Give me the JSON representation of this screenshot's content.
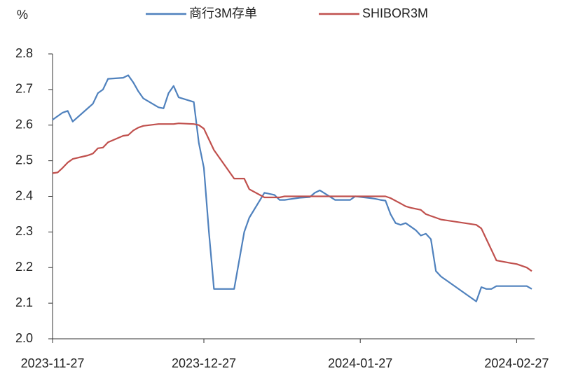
{
  "chart_data": {
    "type": "line",
    "ylabel": "%",
    "xlim": [
      "2023-11-27",
      "2024-03-01"
    ],
    "xticks": [
      "2023-11-27",
      "2023-12-27",
      "2024-01-27",
      "2024-02-27"
    ],
    "ylim": [
      2.0,
      2.8
    ],
    "yticks": [
      {
        "value": 2.0,
        "label": "2.0"
      },
      2.1,
      2.2,
      2.3,
      2.4,
      2.5,
      2.6,
      2.7,
      2.8
    ],
    "legend": "top",
    "series": [
      {
        "name": "商行3M存单",
        "color": "#4f81bd",
        "x": [
          "2023-11-27",
          "2023-11-28",
          "2023-11-29",
          "2023-11-30",
          "2023-12-01",
          "2023-12-05",
          "2023-12-06",
          "2023-12-07",
          "2023-12-08",
          "2023-12-11",
          "2023-12-12",
          "2023-12-13",
          "2023-12-14",
          "2023-12-15",
          "2023-12-18",
          "2023-12-19",
          "2023-12-20",
          "2023-12-21",
          "2023-12-22",
          "2023-12-25",
          "2023-12-26",
          "2023-12-27",
          "2023-12-28",
          "2023-12-29",
          "2024-01-02",
          "2024-01-04",
          "2024-01-05",
          "2024-01-08",
          "2024-01-09",
          "2024-01-10",
          "2024-01-11",
          "2024-01-12",
          "2024-01-15",
          "2024-01-16",
          "2024-01-17",
          "2024-01-18",
          "2024-01-19",
          "2024-01-22",
          "2024-01-23",
          "2024-01-24",
          "2024-01-25",
          "2024-01-26",
          "2024-01-29",
          "2024-01-30",
          "2024-01-31",
          "2024-02-01",
          "2024-02-02",
          "2024-02-03",
          "2024-02-04",
          "2024-02-05",
          "2024-02-06",
          "2024-02-07",
          "2024-02-08",
          "2024-02-09",
          "2024-02-10",
          "2024-02-11",
          "2024-02-12",
          "2024-02-19",
          "2024-02-20",
          "2024-02-21",
          "2024-02-22",
          "2024-02-23",
          "2024-02-26",
          "2024-02-27",
          "2024-02-28",
          "2024-02-29",
          "2024-03-01"
        ],
        "values": [
          2.615,
          2.625,
          2.635,
          2.64,
          2.61,
          2.66,
          2.69,
          2.7,
          2.73,
          2.733,
          2.74,
          2.72,
          2.695,
          2.675,
          2.65,
          2.647,
          2.69,
          2.71,
          2.678,
          2.665,
          2.55,
          2.48,
          2.3,
          2.14,
          2.14,
          2.3,
          2.34,
          2.41,
          2.407,
          2.404,
          2.39,
          2.39,
          2.396,
          2.397,
          2.398,
          2.41,
          2.417,
          2.39,
          2.39,
          2.39,
          2.39,
          2.4,
          2.395,
          2.393,
          2.39,
          2.388,
          2.35,
          2.325,
          2.32,
          2.325,
          2.315,
          2.305,
          2.29,
          2.295,
          2.28,
          2.19,
          2.175,
          2.105,
          2.145,
          2.14,
          2.14,
          2.148,
          2.148,
          2.148,
          2.148,
          2.148,
          2.14
        ]
      },
      {
        "name": "SHIBOR3M",
        "color": "#c0504d",
        "x": [
          "2023-11-27",
          "2023-11-28",
          "2023-11-29",
          "2023-11-30",
          "2023-12-01",
          "2023-12-04",
          "2023-12-05",
          "2023-12-06",
          "2023-12-07",
          "2023-12-08",
          "2023-12-11",
          "2023-12-12",
          "2023-12-13",
          "2023-12-14",
          "2023-12-15",
          "2023-12-18",
          "2023-12-19",
          "2023-12-20",
          "2023-12-21",
          "2023-12-22",
          "2023-12-25",
          "2023-12-26",
          "2023-12-27",
          "2023-12-28",
          "2023-12-29",
          "2024-01-02",
          "2024-01-03",
          "2024-01-04",
          "2024-01-05",
          "2024-01-08",
          "2024-01-11",
          "2024-01-12",
          "2024-01-31",
          "2024-02-01",
          "2024-02-02",
          "2024-02-04",
          "2024-02-05",
          "2024-02-06",
          "2024-02-07",
          "2024-02-08",
          "2024-02-09",
          "2024-02-10",
          "2024-02-11",
          "2024-02-12",
          "2024-02-19",
          "2024-02-20",
          "2024-02-21",
          "2024-02-22",
          "2024-02-23",
          "2024-02-26",
          "2024-02-27",
          "2024-02-28",
          "2024-02-29",
          "2024-03-01"
        ],
        "values": [
          2.465,
          2.467,
          2.48,
          2.495,
          2.505,
          2.515,
          2.52,
          2.535,
          2.537,
          2.552,
          2.57,
          2.572,
          2.585,
          2.593,
          2.598,
          2.603,
          2.603,
          2.603,
          2.603,
          2.605,
          2.603,
          2.6,
          2.59,
          2.56,
          2.53,
          2.45,
          2.45,
          2.45,
          2.42,
          2.397,
          2.397,
          2.4,
          2.4,
          2.4,
          2.395,
          2.38,
          2.372,
          2.368,
          2.365,
          2.362,
          2.35,
          2.345,
          2.34,
          2.335,
          2.32,
          2.31,
          2.28,
          2.25,
          2.22,
          2.212,
          2.21,
          2.205,
          2.2,
          2.19
        ]
      }
    ]
  }
}
